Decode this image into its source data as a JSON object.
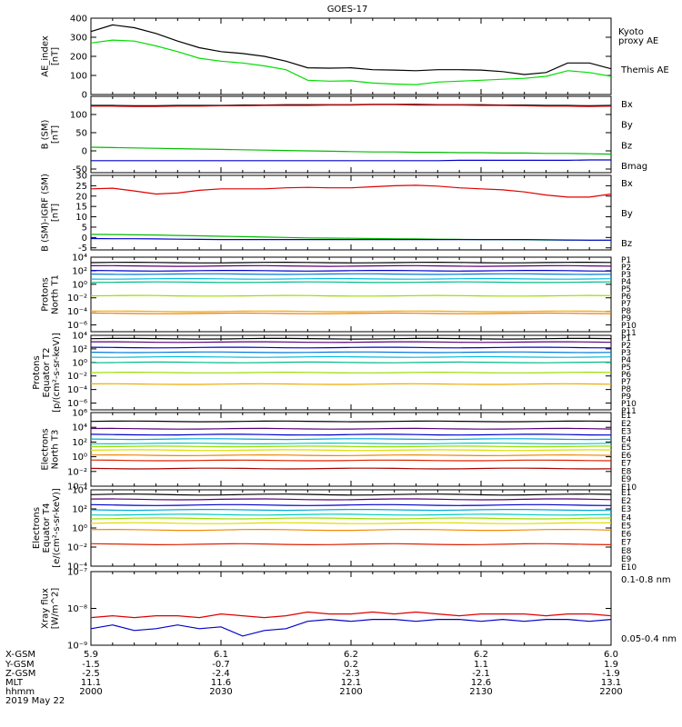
{
  "title": "GOES-17",
  "panels": [
    {
      "id": "ae",
      "ylabel": [
        "AE_index",
        "[nT]"
      ],
      "scale": "linear",
      "yrange": [
        0,
        400
      ],
      "yticks": [
        {
          "v": 0,
          "t": "0"
        },
        {
          "v": 100,
          "t": "100"
        },
        {
          "v": 200,
          "t": "200"
        },
        {
          "v": 300,
          "t": "300"
        },
        {
          "v": 400,
          "t": "400"
        }
      ],
      "legend": [
        {
          "text": "Kyoto",
          "color": "#00dd00"
        },
        {
          "text": "proxy AE",
          "color": "#00dd00"
        },
        {
          "text": "Themis AE",
          "color": "#000000"
        }
      ]
    },
    {
      "id": "bsm",
      "ylabel": [
        "B (SM)",
        "[nT]"
      ],
      "scale": "linear",
      "yrange": [
        -60,
        150
      ],
      "yticks": [
        {
          "v": -50,
          "t": "-50"
        },
        {
          "v": 0,
          "t": "0"
        },
        {
          "v": 50,
          "t": "50"
        },
        {
          "v": 100,
          "t": "100"
        }
      ],
      "legend": [
        {
          "text": "Bx",
          "color": "#0000cc"
        },
        {
          "text": "By",
          "color": "#00bb00"
        },
        {
          "text": "Bz",
          "color": "#dd0000"
        },
        {
          "text": "Bmag",
          "color": "#000000"
        }
      ]
    },
    {
      "id": "bigrf",
      "ylabel": [
        "B (SM)-IGRF (SM)",
        "[nT]"
      ],
      "scale": "linear",
      "yrange": [
        -6,
        30
      ],
      "yticks": [
        {
          "v": -5,
          "t": "-5"
        },
        {
          "v": 0,
          "t": "0"
        },
        {
          "v": 5,
          "t": "5"
        },
        {
          "v": 10,
          "t": "10"
        },
        {
          "v": 15,
          "t": "15"
        },
        {
          "v": 20,
          "t": "20"
        },
        {
          "v": 25,
          "t": "25"
        },
        {
          "v": 30,
          "t": "30"
        }
      ],
      "legend": [
        {
          "text": "Bx",
          "color": "#0000cc"
        },
        {
          "text": "By",
          "color": "#00bb00"
        },
        {
          "text": "Bz",
          "color": "#dd0000"
        }
      ]
    },
    {
      "id": "pt1",
      "ylabel": [
        "Protons",
        "North T1"
      ],
      "scale": "log",
      "yrange": [
        -7,
        4
      ],
      "yticks": [
        {
          "v": 4,
          "t": "10⁴"
        },
        {
          "v": 2,
          "t": "10²"
        },
        {
          "v": 0,
          "t": "10⁰"
        },
        {
          "v": -2,
          "t": "10⁻²"
        },
        {
          "v": -4,
          "t": "10⁻⁴"
        },
        {
          "v": -6,
          "t": "10⁻⁶"
        }
      ],
      "legend": [
        {
          "text": "P1",
          "color": "#000000"
        },
        {
          "text": "P2",
          "color": "#550077"
        },
        {
          "text": "P3",
          "color": "#0000cc"
        },
        {
          "text": "P4",
          "color": "#0077dd"
        },
        {
          "text": "P5",
          "color": "#00bbdd"
        },
        {
          "text": "P6",
          "color": "#00bb88"
        },
        {
          "text": "P7",
          "color": "#99dd00"
        },
        {
          "text": "P8",
          "color": "#eeaa00"
        },
        {
          "text": "P9",
          "color": "#ee7700"
        },
        {
          "text": "P10",
          "color": "#dd2200"
        },
        {
          "text": "P11",
          "color": "#aa0000"
        }
      ]
    },
    {
      "id": "pt2",
      "ylabel": [
        "Protons",
        "Equator T2",
        "[p/(cm²-s-sr-keV)]"
      ],
      "scale": "log",
      "yrange": [
        -7,
        4
      ],
      "yticks": [
        {
          "v": 4,
          "t": "10⁴"
        },
        {
          "v": 2,
          "t": "10²"
        },
        {
          "v": 0,
          "t": "10⁰"
        },
        {
          "v": -2,
          "t": "10⁻²"
        },
        {
          "v": -4,
          "t": "10⁻⁴"
        },
        {
          "v": -6,
          "t": "10⁻⁶"
        }
      ],
      "legend": [
        {
          "text": "P1",
          "color": "#000000"
        },
        {
          "text": "P2",
          "color": "#550077"
        },
        {
          "text": "P3",
          "color": "#0000cc"
        },
        {
          "text": "P4",
          "color": "#0077dd"
        },
        {
          "text": "P5",
          "color": "#00bbdd"
        },
        {
          "text": "P6",
          "color": "#00bb88"
        },
        {
          "text": "P7",
          "color": "#99dd00"
        },
        {
          "text": "P8",
          "color": "#eeaa00"
        },
        {
          "text": "P9",
          "color": "#ee7700"
        },
        {
          "text": "P10",
          "color": "#dd2200"
        },
        {
          "text": "P11",
          "color": "#aa0000"
        }
      ]
    },
    {
      "id": "et3",
      "ylabel": [
        "Electrons",
        "North T3"
      ],
      "scale": "log",
      "yrange": [
        -4,
        6
      ],
      "yticks": [
        {
          "v": 6,
          "t": "10⁶"
        },
        {
          "v": 4,
          "t": "10⁴"
        },
        {
          "v": 2,
          "t": "10²"
        },
        {
          "v": 0,
          "t": "10⁰"
        },
        {
          "v": -2,
          "t": "10⁻²"
        },
        {
          "v": -4,
          "t": "10⁻⁴"
        }
      ],
      "legend": [
        {
          "text": "E1",
          "color": "#000000"
        },
        {
          "text": "E2",
          "color": "#550077"
        },
        {
          "text": "E3",
          "color": "#0000cc"
        },
        {
          "text": "E4",
          "color": "#00aadd"
        },
        {
          "text": "E5",
          "color": "#00ccbb"
        },
        {
          "text": "E6",
          "color": "#99dd00"
        },
        {
          "text": "E7",
          "color": "#dddd00"
        },
        {
          "text": "E8",
          "color": "#ee8800"
        },
        {
          "text": "E9",
          "color": "#dd2200"
        },
        {
          "text": "E10",
          "color": "#aa0000"
        }
      ]
    },
    {
      "id": "et4",
      "ylabel": [
        "Electrons",
        "Equator T4",
        "[e/(cm²-s-sr-keV)]"
      ],
      "scale": "log",
      "yrange": [
        -4,
        4
      ],
      "yticks": [
        {
          "v": 4,
          "t": "10⁴"
        },
        {
          "v": 2,
          "t": "10²"
        },
        {
          "v": 0,
          "t": "10⁰"
        },
        {
          "v": -2,
          "t": "10⁻²"
        },
        {
          "v": -4,
          "t": "10⁻⁴"
        }
      ],
      "legend": [
        {
          "text": "E1",
          "color": "#000000"
        },
        {
          "text": "E2",
          "color": "#550077"
        },
        {
          "text": "E3",
          "color": "#0000cc"
        },
        {
          "text": "E4",
          "color": "#00aadd"
        },
        {
          "text": "E5",
          "color": "#00ccbb"
        },
        {
          "text": "E6",
          "color": "#99dd00"
        },
        {
          "text": "E7",
          "color": "#dddd00"
        },
        {
          "text": "E8",
          "color": "#ee8800"
        },
        {
          "text": "E9",
          "color": "#dd2200"
        },
        {
          "text": "E10",
          "color": "#aa0000"
        }
      ]
    },
    {
      "id": "xray",
      "ylabel": [
        "Xray flux",
        "[W/m^2]"
      ],
      "scale": "log",
      "yrange": [
        -9,
        -7
      ],
      "yticks": [
        {
          "v": -7,
          "t": "10⁻⁷"
        },
        {
          "v": -8,
          "t": "10⁻⁸"
        },
        {
          "v": -9,
          "t": "10⁻⁹"
        }
      ],
      "legend": [
        {
          "text": "0.1-0.8 nm",
          "color": "#dd0000"
        },
        {
          "text": "0.05-0.4 nm",
          "color": "#0000cc"
        }
      ]
    }
  ],
  "bottom_axis": {
    "row_labels": [
      "X-GSM",
      "Y-GSM",
      "Z-GSM",
      "MLT",
      "hhmm",
      "2019 May 22"
    ],
    "columns": [
      {
        "x": "5.9",
        "y": "-1.5",
        "z": "-2.5",
        "mlt": "11.1",
        "hhmm": "2000"
      },
      {
        "x": "6.1",
        "y": "-0.7",
        "z": "-2.4",
        "mlt": "11.6",
        "hhmm": "2030"
      },
      {
        "x": "6.2",
        "y": "0.2",
        "z": "-2.3",
        "mlt": "12.1",
        "hhmm": "2100"
      },
      {
        "x": "6.2",
        "y": "1.1",
        "z": "-2.1",
        "mlt": "12.6",
        "hhmm": "2130"
      },
      {
        "x": "6.0",
        "y": "1.9",
        "z": "-1.9",
        "mlt": "13.1",
        "hhmm": "2200"
      }
    ]
  },
  "chart_data": {
    "type": "line",
    "title": "GOES-17",
    "x_minutes": [
      0,
      5,
      10,
      15,
      20,
      25,
      30,
      35,
      40,
      45,
      50,
      55,
      60,
      65,
      70,
      75,
      80,
      85,
      90,
      95,
      100,
      105,
      110,
      115,
      120
    ],
    "series": [
      {
        "panel": "ae",
        "name": "Kyoto proxy AE",
        "color": "#00dd00",
        "values": [
          270,
          285,
          280,
          255,
          225,
          190,
          175,
          165,
          150,
          130,
          75,
          70,
          72,
          60,
          55,
          52,
          65,
          70,
          75,
          80,
          85,
          95,
          125,
          115,
          95
        ]
      },
      {
        "panel": "ae",
        "name": "Themis AE",
        "color": "#000000",
        "values": [
          330,
          365,
          350,
          320,
          280,
          245,
          225,
          215,
          200,
          175,
          140,
          138,
          140,
          130,
          128,
          125,
          130,
          130,
          128,
          120,
          105,
          115,
          165,
          165,
          135
        ]
      },
      {
        "panel": "bsm",
        "name": "Bmag",
        "color": "#000000",
        "values": [
          125,
          125,
          124,
          124,
          125,
          125,
          125,
          126,
          126,
          127,
          127,
          127,
          127,
          128,
          128,
          128,
          127,
          127,
          127,
          126,
          126,
          125,
          125,
          124,
          125
        ]
      },
      {
        "panel": "bsm",
        "name": "Bz",
        "color": "#dd0000",
        "values": [
          123,
          123,
          122,
          122,
          123,
          123,
          124,
          124,
          125,
          125,
          125,
          126,
          126,
          127,
          127,
          126,
          126,
          126,
          125,
          125,
          124,
          123,
          123,
          122,
          123
        ]
      },
      {
        "panel": "bsm",
        "name": "By",
        "color": "#00bb00",
        "values": [
          10,
          9,
          8,
          7,
          6,
          5,
          4,
          3,
          2,
          1,
          0,
          -1,
          -2,
          -3,
          -3,
          -4,
          -4,
          -5,
          -5,
          -6,
          -6,
          -7,
          -7,
          -8,
          -9
        ]
      },
      {
        "panel": "bsm",
        "name": "Bx",
        "color": "#0000cc",
        "values": [
          -27,
          -27,
          -27,
          -27,
          -27,
          -27,
          -27,
          -27,
          -27,
          -27,
          -27,
          -27,
          -27,
          -27,
          -27,
          -27,
          -27,
          -26,
          -26,
          -26,
          -26,
          -26,
          -26,
          -25,
          -25
        ]
      },
      {
        "panel": "bigrf",
        "name": "Bz",
        "color": "#dd0000",
        "values": [
          23.5,
          23.8,
          22.5,
          21.0,
          21.5,
          22.8,
          23.5,
          23.5,
          23.5,
          24.0,
          24.2,
          24.0,
          24.0,
          24.5,
          25.0,
          25.2,
          24.8,
          24.0,
          23.5,
          23.0,
          22.0,
          20.5,
          19.5,
          19.5,
          21.0
        ]
      },
      {
        "panel": "bigrf",
        "name": "By",
        "color": "#00bb00",
        "values": [
          1.5,
          1.4,
          1.3,
          1.2,
          1.0,
          0.8,
          0.6,
          0.4,
          0.2,
          0.0,
          -0.2,
          -0.3,
          -0.4,
          -0.5,
          -0.6,
          -0.7,
          -0.8,
          -0.9,
          -1.0,
          -1.0,
          -1.1,
          -1.2,
          -1.2,
          -1.3,
          -1.3
        ]
      },
      {
        "panel": "bigrf",
        "name": "Bx",
        "color": "#0000cc",
        "values": [
          -0.5,
          -0.6,
          -0.6,
          -0.7,
          -0.8,
          -0.9,
          -1.0,
          -1.0,
          -1.0,
          -1.0,
          -1.0,
          -1.0,
          -1.0,
          -1.0,
          -1.0,
          -1.0,
          -1.0,
          -1.0,
          -1.0,
          -1.0,
          -1.0,
          -1.1,
          -1.2,
          -1.3,
          -1.3
        ]
      },
      {
        "panel": "xray",
        "name": "0.1-0.8 nm",
        "color": "#dd0000",
        "values": [
          -8.25,
          -8.2,
          -8.25,
          -8.2,
          -8.2,
          -8.25,
          -8.15,
          -8.2,
          -8.25,
          -8.2,
          -8.1,
          -8.15,
          -8.15,
          -8.1,
          -8.15,
          -8.1,
          -8.15,
          -8.2,
          -8.15,
          -8.15,
          -8.15,
          -8.2,
          -8.15,
          -8.15,
          -8.2
        ]
      },
      {
        "panel": "xray",
        "name": "0.05-0.4 nm",
        "color": "#0000cc",
        "values": [
          -8.55,
          -8.45,
          -8.6,
          -8.55,
          -8.45,
          -8.55,
          -8.5,
          -8.75,
          -8.6,
          -8.55,
          -8.35,
          -8.3,
          -8.35,
          -8.3,
          -8.3,
          -8.35,
          -8.3,
          -8.3,
          -8.35,
          -8.3,
          -8.35,
          -8.3,
          -8.3,
          -8.35,
          -8.3
        ]
      }
    ],
    "flux_levels": {
      "pt1": [
        3.2,
        2.7,
        2.0,
        1.5,
        0.8,
        0.3,
        -1.7,
        -4.0,
        -4.3
      ],
      "pt2": [
        3.5,
        3.0,
        2.2,
        1.5,
        0.8,
        0.0,
        -1.5,
        -3.2
      ],
      "et3": [
        4.8,
        3.8,
        3.0,
        2.4,
        1.8,
        1.4,
        0.9,
        0.2,
        -0.5,
        -1.6
      ],
      "et4": [
        3.5,
        3.0,
        2.4,
        1.9,
        1.4,
        1.0,
        0.5,
        -0.2,
        -1.7
      ]
    }
  }
}
